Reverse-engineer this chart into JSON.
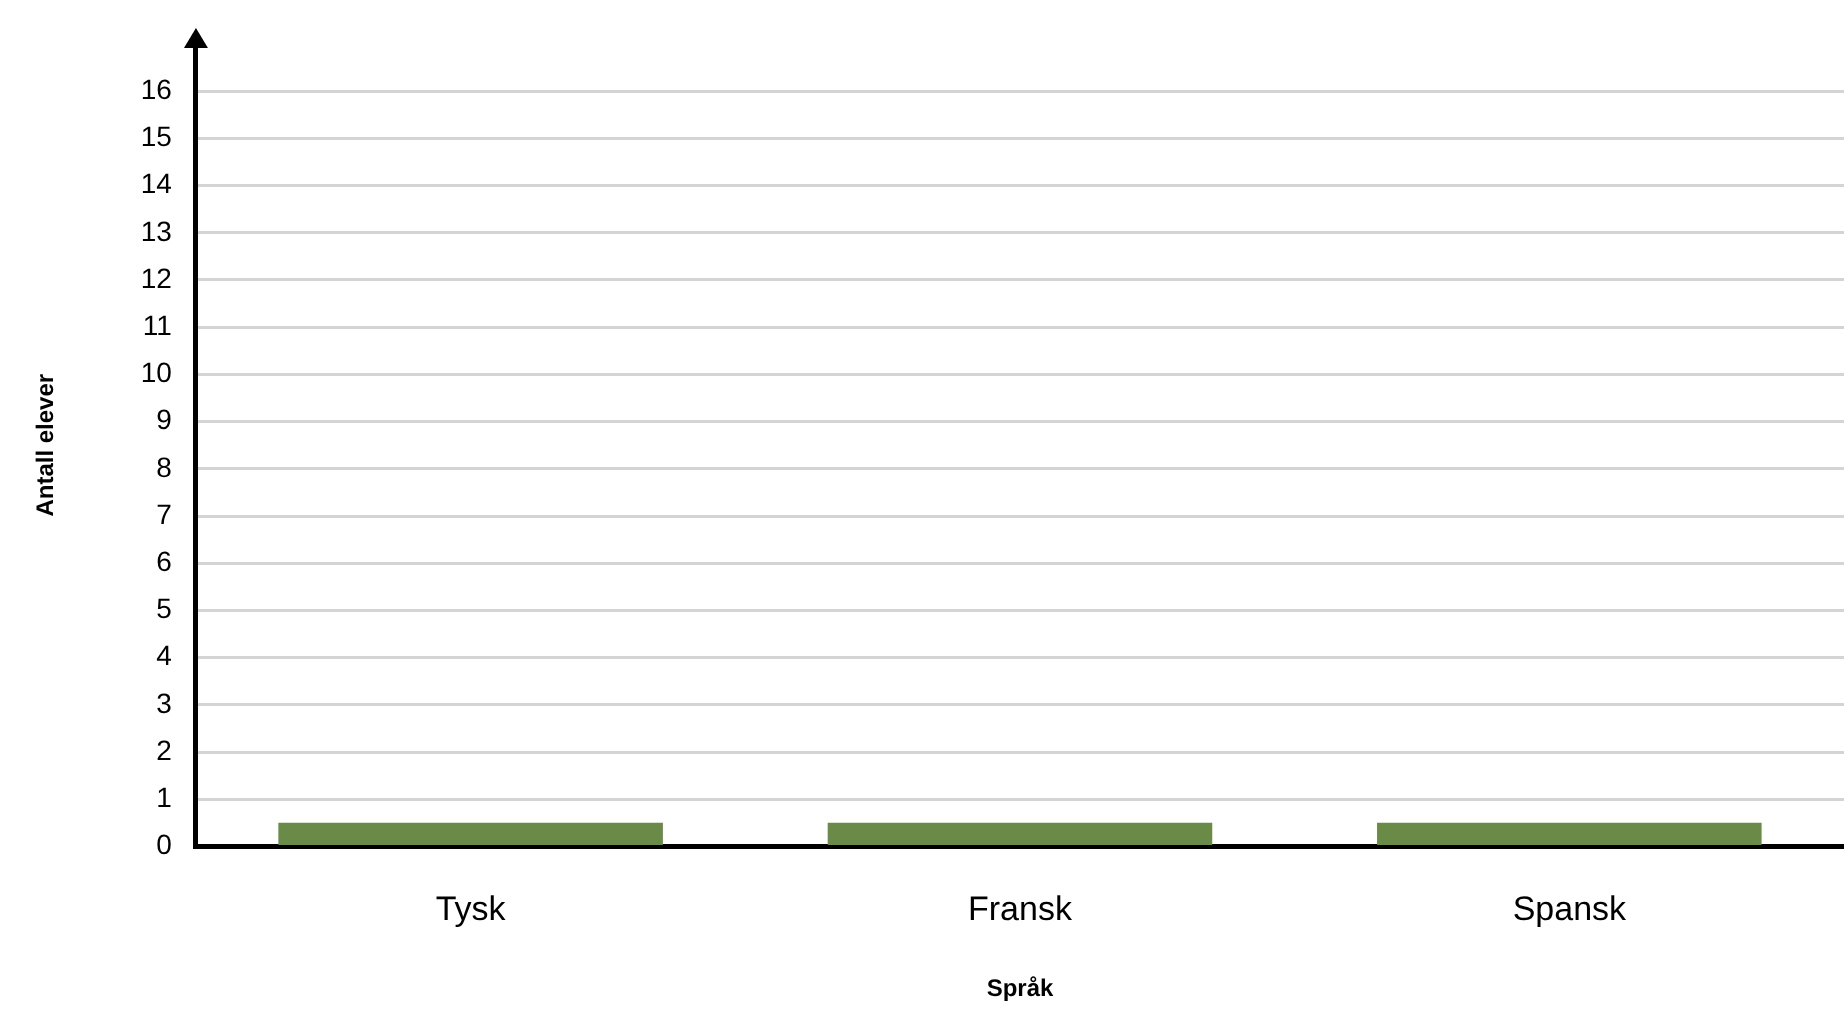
{
  "chart_data": {
    "type": "bar",
    "xlabel": "Språk",
    "ylabel": "Antall elever",
    "categories": [
      "Tysk",
      "Fransk",
      "Spansk"
    ],
    "values": [
      0.5,
      0.5,
      0.5
    ],
    "color": "#6a8a47",
    "ylim": [
      0,
      17
    ],
    "yticks": [
      0,
      1,
      2,
      3,
      4,
      5,
      6,
      7,
      8,
      9,
      10,
      11,
      12,
      13,
      14,
      15,
      16
    ],
    "grid": "y",
    "legend": false
  }
}
